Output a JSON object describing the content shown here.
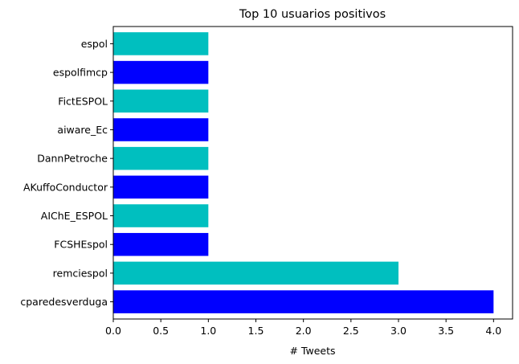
{
  "chart_data": {
    "type": "bar",
    "orientation": "horizontal",
    "title": "Top 10 usuarios positivos",
    "xlabel": "# Tweets",
    "ylabel": "",
    "xlim": [
      0,
      4.2
    ],
    "xticks": [
      0.0,
      0.5,
      1.0,
      1.5,
      2.0,
      2.5,
      3.0,
      3.5,
      4.0
    ],
    "xtick_labels": [
      "0.0",
      "0.5",
      "1.0",
      "1.5",
      "2.0",
      "2.5",
      "3.0",
      "3.5",
      "4.0"
    ],
    "categories": [
      "cparedesverduga",
      "remciespol",
      "FCSHEspol",
      "AIChE_ESPOL",
      "AKuffoConductor",
      "DannPetroche",
      "aiware_Ec",
      "FictESPOL",
      "espolfimcp",
      "espol"
    ],
    "values": [
      4,
      3,
      1,
      1,
      1,
      1,
      1,
      1,
      1,
      1
    ],
    "colors": [
      "#0000ff",
      "#00bfbf"
    ],
    "grid": false,
    "legend": false
  }
}
